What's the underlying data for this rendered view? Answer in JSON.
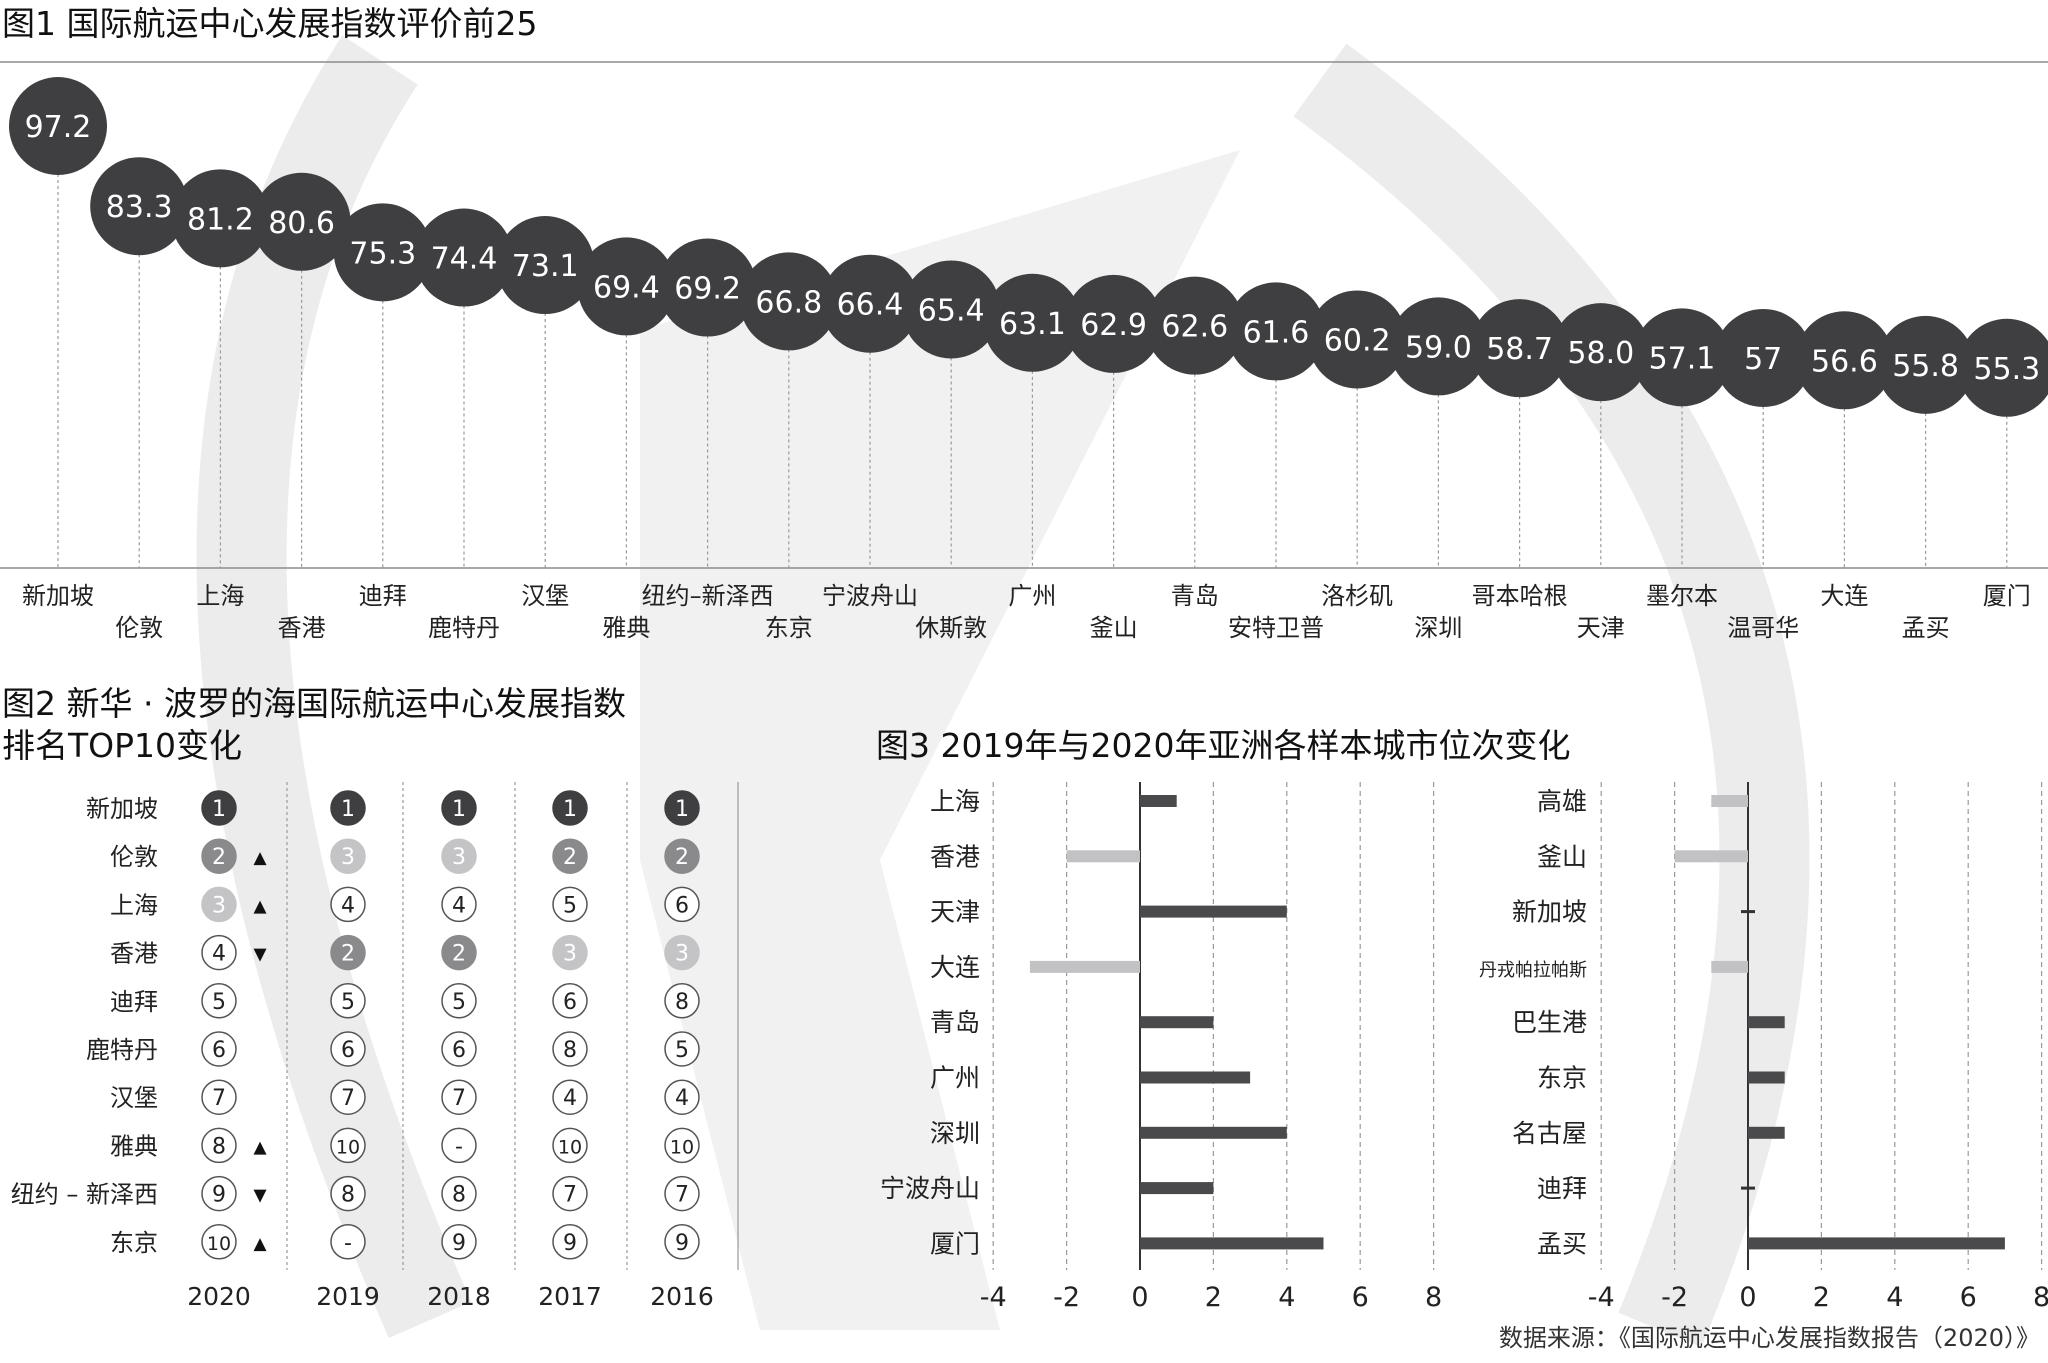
{
  "fig1": {
    "title": "图1 国际航运中心发展指数评价前25",
    "chart_data": {
      "type": "scatter",
      "title": "图1 国际航运中心发展指数评价前25",
      "categories": [
        "新加坡",
        "伦敦",
        "上海",
        "香港",
        "迪拜",
        "鹿特丹",
        "汉堡",
        "雅典",
        "纽约–新泽西",
        "东京",
        "宁波舟山",
        "休斯敦",
        "广州",
        "釜山",
        "青岛",
        "安特卫普",
        "洛杉矶",
        "深圳",
        "哥本哈根",
        "天津",
        "墨尔本",
        "温哥华",
        "大连",
        "孟买",
        "厦门"
      ],
      "values": [
        97.2,
        83.3,
        81.2,
        80.6,
        75.3,
        74.4,
        73.1,
        69.4,
        69.2,
        66.8,
        66.4,
        65.4,
        63.1,
        62.9,
        62.6,
        61.6,
        60.2,
        59.0,
        58.7,
        58.0,
        57.1,
        57,
        56.6,
        55.8,
        55.3
      ],
      "value_labels": [
        "97.2",
        "83.3",
        "81.2",
        "80.6",
        "75.3",
        "74.4",
        "73.1",
        "69.4",
        "69.2",
        "66.8",
        "66.4",
        "65.4",
        "63.1",
        "62.9",
        "62.6",
        "61.6",
        "60.2",
        "59.0",
        "58.7",
        "58.0",
        "57.1",
        "57",
        "56.6",
        "55.8",
        "55.3"
      ]
    }
  },
  "fig2": {
    "title_line1": "图2 新华 · 波罗的海国际航运中心发展指数",
    "title_line2": "排名TOP10变化",
    "chart_data": {
      "type": "table",
      "rows": [
        "新加坡",
        "伦敦",
        "上海",
        "香港",
        "迪拜",
        "鹿特丹",
        "汉堡",
        "雅典",
        "纽约 – 新泽西",
        "东京"
      ],
      "years": [
        "2020",
        "2019",
        "2018",
        "2017",
        "2016"
      ],
      "ranks": [
        [
          "1",
          "1",
          "1",
          "1",
          "1"
        ],
        [
          "2",
          "3",
          "3",
          "2",
          "2"
        ],
        [
          "3",
          "4",
          "4",
          "5",
          "6"
        ],
        [
          "4",
          "2",
          "2",
          "3",
          "3"
        ],
        [
          "5",
          "5",
          "5",
          "6",
          "8"
        ],
        [
          "6",
          "6",
          "6",
          "8",
          "5"
        ],
        [
          "7",
          "7",
          "7",
          "4",
          "4"
        ],
        [
          "8",
          "10",
          "-",
          "10",
          "10"
        ],
        [
          "9",
          "8",
          "8",
          "7",
          "7"
        ],
        [
          "10",
          "-",
          "9",
          "9",
          "9"
        ]
      ],
      "trend_2020": [
        "",
        "▲",
        "▲",
        "▼",
        "",
        "",
        "",
        "▲",
        "▼",
        "▲"
      ],
      "colors": {
        "rank1": "#3f3f41",
        "rank2": "#8a8a8c",
        "rank3": "#c4c4c6",
        "other": "#ffffff"
      }
    }
  },
  "fig3": {
    "title": "图3 2019年与2020年亚洲各样本城市位次变化",
    "chart_data": [
      {
        "type": "bar",
        "orientation": "horizontal",
        "categories": [
          "上海",
          "香港",
          "天津",
          "大连",
          "青岛",
          "广州",
          "深圳",
          "宁波舟山",
          "厦门"
        ],
        "values": [
          1,
          -2,
          4,
          -3,
          2,
          3,
          4,
          2,
          5
        ],
        "xlim": [
          -4,
          8
        ],
        "xticks": [
          "-4",
          "-2",
          "0",
          "2",
          "4",
          "6",
          "8"
        ],
        "colors": {
          "positive": "#4a4a4c",
          "negative": "#c2c2c4"
        }
      },
      {
        "type": "bar",
        "orientation": "horizontal",
        "categories": [
          "高雄",
          "釜山",
          "新加坡",
          "丹戎帕拉帕斯",
          "巴生港",
          "东京",
          "名古屋",
          "迪拜",
          "孟买"
        ],
        "values": [
          -1,
          -2,
          0,
          -1,
          1,
          1,
          1,
          0,
          7
        ],
        "xlim": [
          -4,
          8
        ],
        "xticks": [
          "-4",
          "-2",
          "0",
          "2",
          "4",
          "6",
          "8"
        ],
        "colors": {
          "positive": "#4a4a4c",
          "negative": "#c2c2c4"
        }
      }
    ]
  },
  "source": "数据来源：《国际航运中心发展指数报告（2020）》"
}
